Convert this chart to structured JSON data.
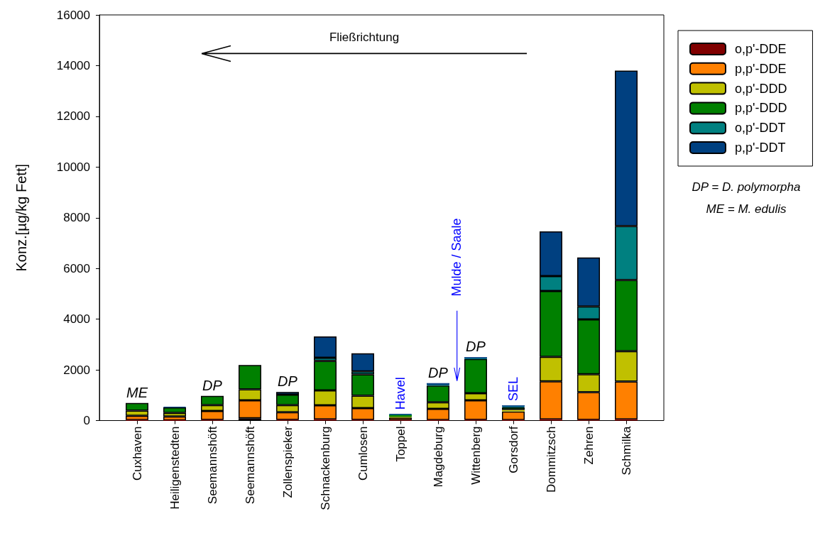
{
  "chart_data": {
    "type": "bar",
    "stacked": true,
    "ylabel": "Konz.[µg/kg Fett]",
    "categories": [
      "Cuxhaven",
      "Heiligenstedten",
      "Seemannshöft",
      "Seemannshöft",
      "Zollenspieker",
      "Schnackenburg",
      "Cumlosen",
      "Toppel",
      "Magdeburg",
      "Wittenberg",
      "Gorsdorf",
      "Dommitzsch",
      "Zehren",
      "Schmilka"
    ],
    "series": [
      {
        "name": "o,p'-DDE",
        "color": "#800000",
        "values": [
          20,
          10,
          30,
          90,
          30,
          50,
          30,
          20,
          20,
          30,
          20,
          50,
          30,
          50
        ]
      },
      {
        "name": "p,p'-DDE",
        "color": "#ff8000",
        "values": [
          170,
          150,
          350,
          710,
          300,
          550,
          460,
          100,
          440,
          770,
          340,
          1500,
          1090,
          1490
        ]
      },
      {
        "name": "o,p'-DDD",
        "color": "#c0c000",
        "values": [
          200,
          140,
          230,
          430,
          280,
          590,
          490,
          30,
          260,
          280,
          60,
          960,
          710,
          1200
        ]
      },
      {
        "name": "p,p'-DDD",
        "color": "#008000",
        "values": [
          300,
          220,
          360,
          960,
          410,
          1160,
          840,
          80,
          660,
          1350,
          100,
          2600,
          2160,
          2800
        ]
      },
      {
        "name": "o,p'-DDT",
        "color": "#008080",
        "values": [
          null,
          null,
          null,
          null,
          null,
          130,
          120,
          10,
          30,
          20,
          30,
          590,
          510,
          2130
        ]
      },
      {
        "name": "p,p'-DDT",
        "color": "#004080",
        "values": [
          null,
          20,
          null,
          null,
          110,
          840,
          710,
          20,
          70,
          50,
          50,
          1760,
          1930,
          6130
        ]
      }
    ],
    "ylim": [
      0,
      16000
    ],
    "yticks": [
      0,
      2000,
      4000,
      6000,
      8000,
      10000,
      12000,
      14000,
      16000
    ],
    "legend": "right",
    "annotations": [
      "Fließrichtung",
      "Mulde / Saale",
      {
        "text": "ME",
        "x": "Cuxhaven",
        "y": 690
      },
      {
        "text": "DP",
        "x": "Seemannshöft",
        "y": 965
      },
      {
        "text": "DP",
        "x": "Zollenspieker",
        "y": 1130
      },
      {
        "text": "Havel",
        "x": "Toppel",
        "y": 260
      },
      {
        "text": "DP",
        "x": "Magdeburg",
        "y": 1475
      },
      {
        "text": "DP",
        "x": "Wittenberg",
        "y": 2500
      },
      {
        "text": "SEL",
        "x": "Gorsdorf",
        "y": 600
      },
      "DP = D. polymorpha",
      "ME = M. edulis"
    ]
  }
}
